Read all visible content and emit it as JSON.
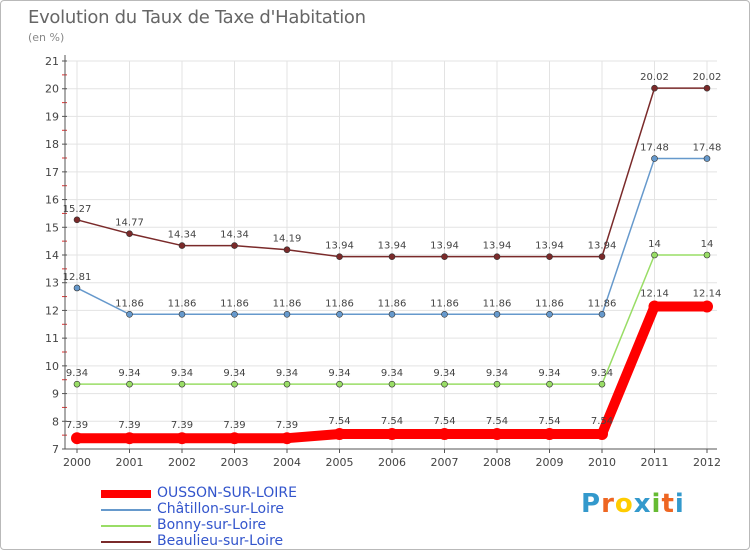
{
  "header": {
    "title": "Evolution du Taux de Taxe d'Habitation",
    "subtitle": "(en %)"
  },
  "chart_data": {
    "type": "line",
    "title": "Evolution du Taux de Taxe d'Habitation",
    "subtitle": "(en %)",
    "xlabel": "",
    "ylabel": "",
    "x": [
      "2000",
      "2001",
      "2002",
      "2003",
      "2004",
      "2005",
      "2006",
      "2007",
      "2008",
      "2009",
      "2010",
      "2011",
      "2012"
    ],
    "ylim": [
      7,
      21
    ],
    "yticks": [
      "7",
      "8",
      "9",
      "10",
      "11",
      "12",
      "13",
      "14",
      "15",
      "16",
      "17",
      "18",
      "19",
      "20",
      "21"
    ],
    "grid": true,
    "legend_position": "bottom-left",
    "series": [
      {
        "name": "OUSSON-SUR-LOIRE",
        "color": "#ff0000",
        "emphasis": true,
        "values": [
          7.39,
          7.39,
          7.39,
          7.39,
          7.39,
          7.54,
          7.54,
          7.54,
          7.54,
          7.54,
          7.54,
          12.14,
          12.14
        ],
        "labels": [
          "7.39",
          "7.39",
          "7.39",
          "7.39",
          "7.39",
          "7.54",
          "7.54",
          "7.54",
          "7.54",
          "7.54",
          "7.54",
          "12.14",
          "12.14"
        ]
      },
      {
        "name": "Châtillon-sur-Loire",
        "color": "#6699cc",
        "values": [
          12.81,
          11.86,
          11.86,
          11.86,
          11.86,
          11.86,
          11.86,
          11.86,
          11.86,
          11.86,
          11.86,
          17.48,
          17.48
        ],
        "labels": [
          "12.81",
          "11.86",
          "11.86",
          "11.86",
          "11.86",
          "11.86",
          "11.86",
          "11.86",
          "11.86",
          "11.86",
          "11.86",
          "17.48",
          "17.48"
        ]
      },
      {
        "name": "Bonny-sur-Loire",
        "color": "#99dd66",
        "values": [
          9.34,
          9.34,
          9.34,
          9.34,
          9.34,
          9.34,
          9.34,
          9.34,
          9.34,
          9.34,
          9.34,
          14,
          14
        ],
        "labels": [
          "9.34",
          "9.34",
          "9.34",
          "9.34",
          "9.34",
          "9.34",
          "9.34",
          "9.34",
          "9.34",
          "9.34",
          "9.34",
          "14",
          "14"
        ]
      },
      {
        "name": "Beaulieu-sur-Loire",
        "color": "#7a2a2a",
        "values": [
          15.27,
          14.77,
          14.34,
          14.34,
          14.19,
          13.94,
          13.94,
          13.94,
          13.94,
          13.94,
          13.94,
          20.02,
          20.02
        ],
        "labels": [
          "15.27",
          "14.77",
          "14.34",
          "14.34",
          "14.19",
          "13.94",
          "13.94",
          "13.94",
          "13.94",
          "13.94",
          "13.94",
          "20.02",
          "20.02"
        ]
      }
    ]
  },
  "legend": {
    "items": [
      {
        "label": "OUSSON-SUR-LOIRE",
        "color": "#ff0000"
      },
      {
        "label": "Châtillon-sur-Loire",
        "color": "#6699cc"
      },
      {
        "label": "Bonny-sur-Loire",
        "color": "#99dd66"
      },
      {
        "label": "Beaulieu-sur-Loire",
        "color": "#7a2a2a"
      }
    ]
  },
  "logo": {
    "letters": [
      "P",
      "r",
      "o",
      "x",
      "i",
      "t",
      "i"
    ],
    "colors": [
      "#3399cc",
      "#ee6622",
      "#ffcc00",
      "#3399cc",
      "#66bb33",
      "#ee6622",
      "#3399cc"
    ]
  }
}
